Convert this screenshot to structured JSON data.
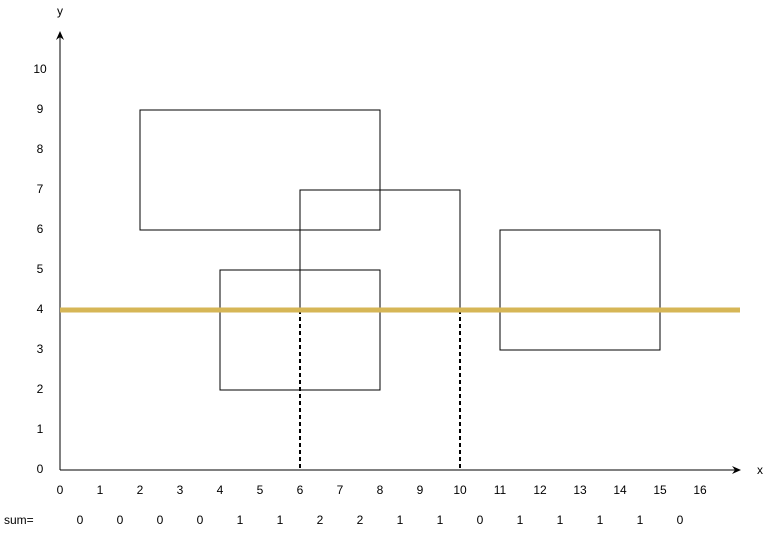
{
  "axes": {
    "x_label": "x",
    "y_label": "y",
    "x_ticks": [
      "0",
      "1",
      "2",
      "3",
      "4",
      "5",
      "6",
      "7",
      "8",
      "9",
      "10",
      "11",
      "12",
      "13",
      "14",
      "15",
      "16"
    ],
    "y_ticks": [
      "0",
      "1",
      "2",
      "3",
      "4",
      "5",
      "6",
      "7",
      "8",
      "9",
      "10"
    ]
  },
  "sum": {
    "label": "sum=",
    "values": [
      "0",
      "0",
      "0",
      "0",
      "1",
      "1",
      "2",
      "2",
      "1",
      "1",
      "0",
      "1",
      "1",
      "1",
      "1",
      "0"
    ]
  }
}
